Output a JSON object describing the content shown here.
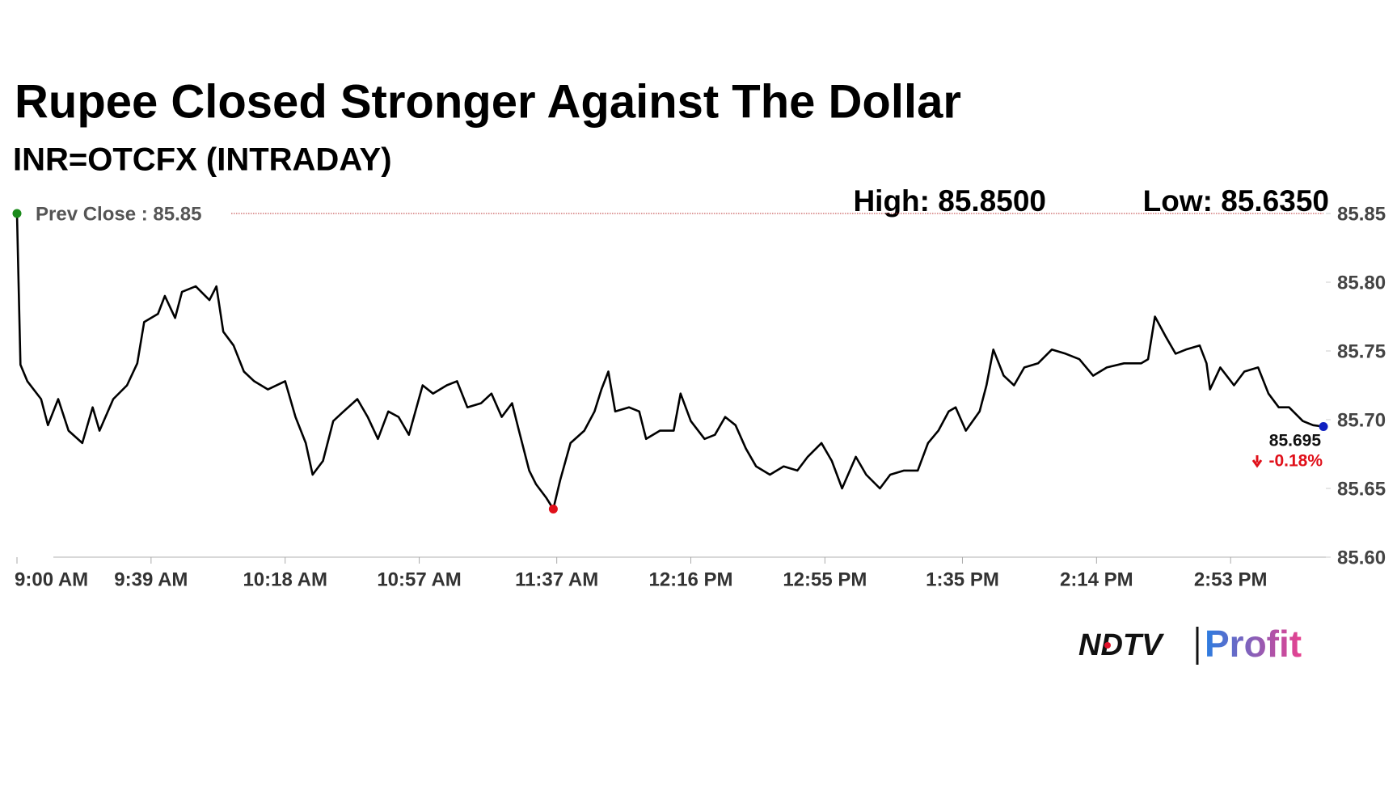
{
  "chart_data": {
    "type": "line",
    "title": "Rupee Closed Stronger Against The Dollar",
    "subtitle": "INR=OTCFX (INTRADAY)",
    "high": {
      "value": 85.85,
      "label": "High: 85.8500"
    },
    "low": {
      "value": 85.635,
      "label": "Low: 85.6350"
    },
    "prev_close": {
      "value": 85.85,
      "label": "Prev Close : 85.85"
    },
    "last": 85.695,
    "change": {
      "value": -0.18,
      "label": "-0.18%"
    },
    "color": "#000000",
    "x": [
      540,
      541,
      543,
      547,
      549,
      552,
      555,
      559,
      562,
      564,
      568,
      572,
      575,
      577,
      581,
      583,
      586,
      588,
      592,
      596,
      598,
      600,
      603,
      606,
      609,
      613,
      618,
      621,
      624,
      626,
      629,
      632,
      635,
      639,
      642,
      645,
      648,
      651,
      654,
      658,
      661,
      665,
      668,
      671,
      675,
      678,
      681,
      684,
      686,
      689,
      691,
      694,
      696,
      698,
      701,
      705,
      708,
      710,
      712,
      714,
      718,
      721,
      723,
      727,
      731,
      733,
      736,
      740,
      743,
      746,
      749,
      752,
      755,
      759,
      763,
      767,
      770,
      774,
      777,
      780,
      784,
      787,
      791,
      794,
      798,
      802,
      805,
      808,
      811,
      813,
      816,
      820,
      822,
      824,
      827,
      830,
      833,
      837,
      841,
      845,
      849,
      853,
      857,
      862,
      867,
      869,
      871,
      874,
      877,
      880,
      884,
      886,
      887,
      890,
      894,
      897,
      901,
      904,
      907,
      910,
      914,
      917,
      920
    ],
    "values": [
      85.85,
      85.74,
      85.728,
      85.715,
      85.696,
      85.715,
      85.692,
      85.683,
      85.709,
      85.692,
      85.715,
      85.725,
      85.741,
      85.771,
      85.777,
      85.79,
      85.774,
      85.793,
      85.797,
      85.787,
      85.797,
      85.764,
      85.754,
      85.735,
      85.728,
      85.722,
      85.728,
      85.702,
      85.683,
      85.66,
      85.67,
      85.699,
      85.706,
      85.715,
      85.702,
      85.686,
      85.706,
      85.702,
      85.689,
      85.725,
      85.719,
      85.725,
      85.728,
      85.709,
      85.712,
      85.719,
      85.702,
      85.712,
      85.692,
      85.663,
      85.653,
      85.643,
      85.635,
      85.656,
      85.683,
      85.692,
      85.706,
      85.722,
      85.735,
      85.706,
      85.709,
      85.706,
      85.686,
      85.692,
      85.692,
      85.719,
      85.699,
      85.686,
      85.689,
      85.702,
      85.696,
      85.679,
      85.666,
      85.66,
      85.666,
      85.663,
      85.673,
      85.683,
      85.67,
      85.65,
      85.673,
      85.66,
      85.65,
      85.66,
      85.663,
      85.663,
      85.683,
      85.692,
      85.706,
      85.709,
      85.692,
      85.706,
      85.725,
      85.751,
      85.732,
      85.725,
      85.738,
      85.741,
      85.751,
      85.748,
      85.744,
      85.732,
      85.738,
      85.741,
      85.741,
      85.744,
      85.775,
      85.761,
      85.748,
      85.751,
      85.754,
      85.741,
      85.722,
      85.738,
      85.725,
      85.735,
      85.738,
      85.719,
      85.709,
      85.709,
      85.699,
      85.696,
      85.695
    ],
    "xlim": [
      540,
      920
    ],
    "xticks": [
      {
        "value": 540,
        "label": "9:00 AM"
      },
      {
        "value": 579,
        "label": "9:39 AM"
      },
      {
        "value": 618,
        "label": "10:18 AM"
      },
      {
        "value": 657,
        "label": "10:57 AM"
      },
      {
        "value": 697,
        "label": "11:37 AM"
      },
      {
        "value": 736,
        "label": "12:16 PM"
      },
      {
        "value": 775,
        "label": "12:55 PM"
      },
      {
        "value": 815,
        "label": "1:35 PM"
      },
      {
        "value": 854,
        "label": "2:14 PM"
      },
      {
        "value": 893,
        "label": "2:53 PM"
      }
    ],
    "ylim": [
      85.6,
      85.85
    ],
    "yticks": [
      85.85,
      {
        "value": 85.8,
        "label": "85.80"
      },
      85.75,
      {
        "value": 85.7,
        "label": "85.70"
      },
      85.65,
      {
        "value": 85.6,
        "label": "85.60"
      }
    ]
  },
  "logo": {
    "brand": "NDTV",
    "product": "Profit"
  }
}
